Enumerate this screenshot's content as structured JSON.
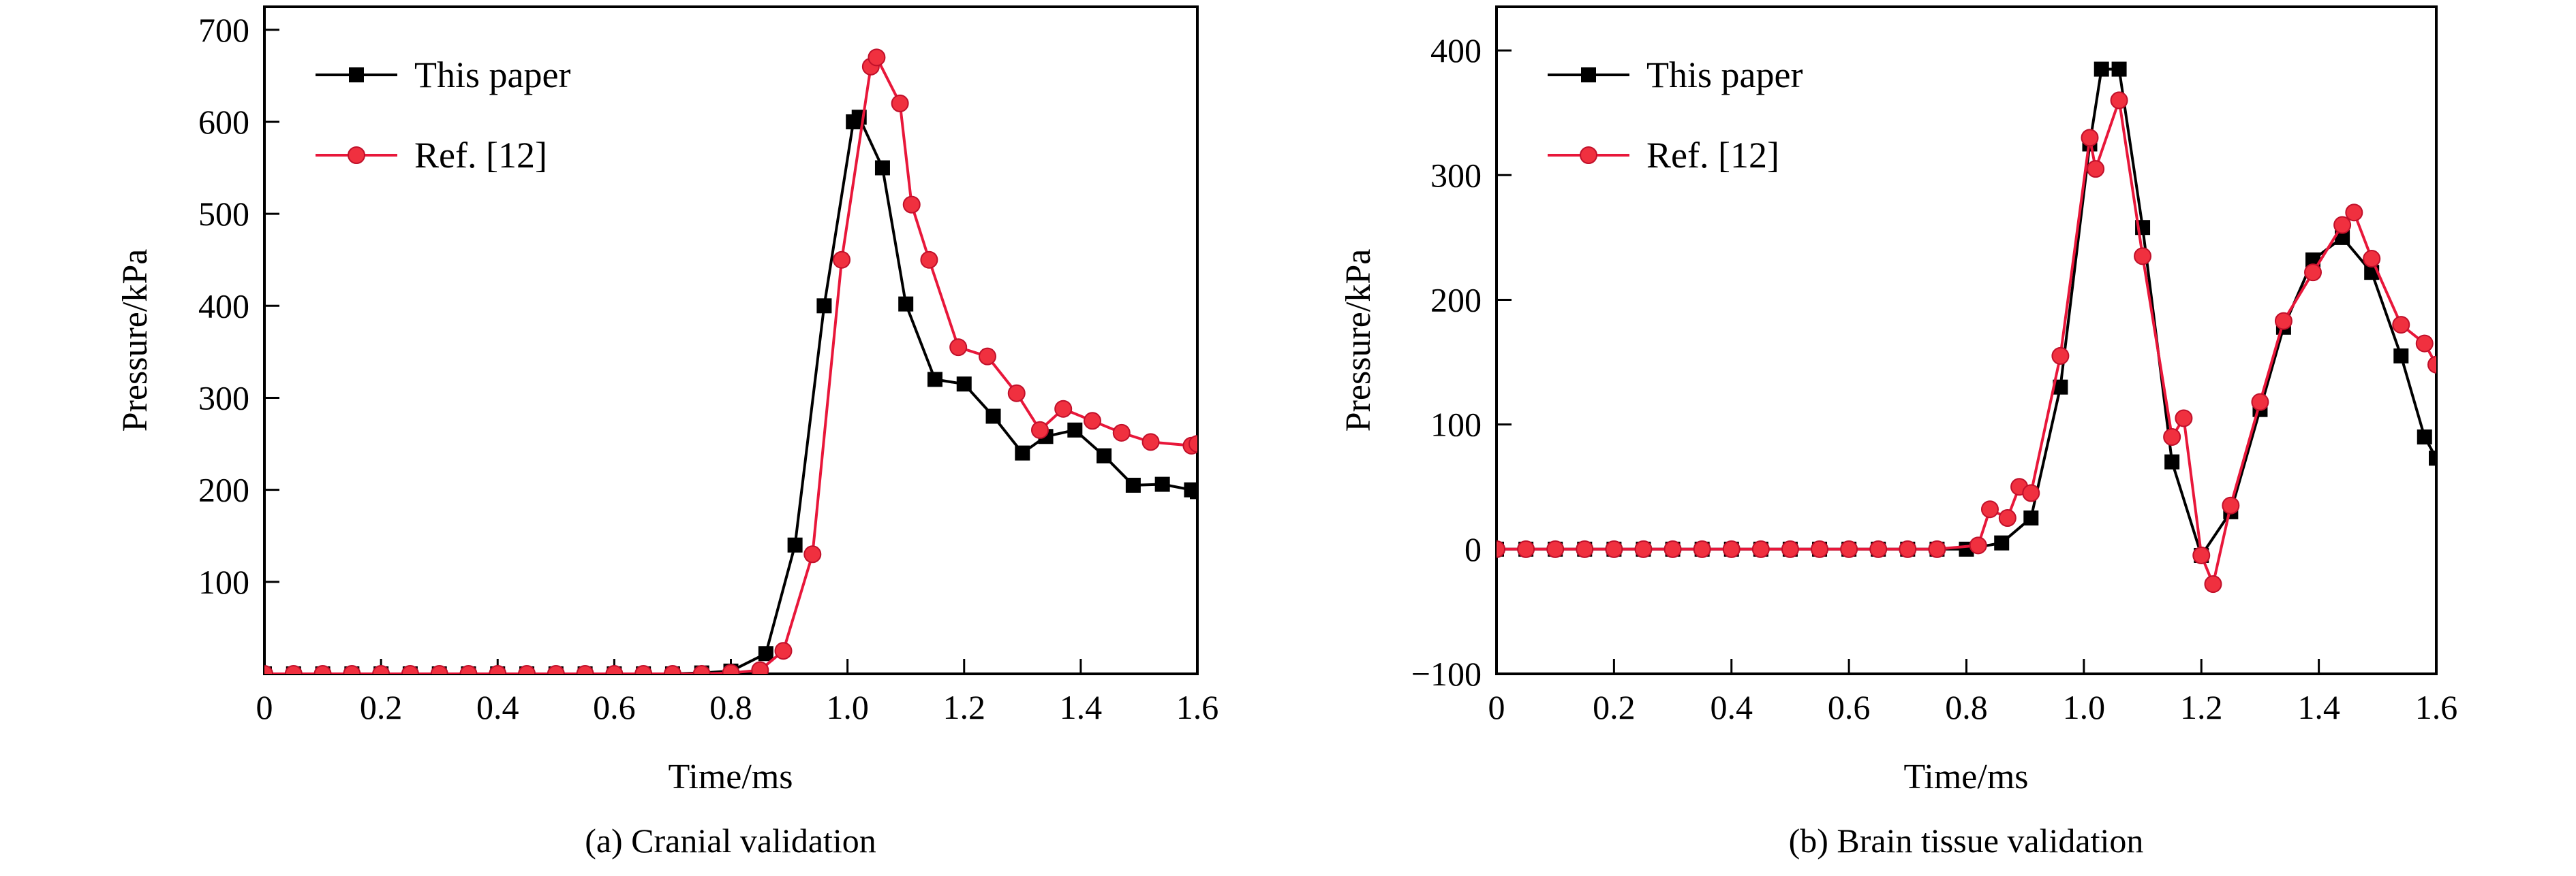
{
  "colors": {
    "this_paper": "#000000",
    "ref": "#e8173a",
    "ref_marker": "#f0303f"
  },
  "chart_data": [
    {
      "type": "line",
      "caption": "(a) Cranial validation",
      "xlabel": "Time/ms",
      "ylabel": "Pressure/kPa",
      "xlim": [
        0,
        1.6
      ],
      "ylim": [
        0,
        725
      ],
      "xticks": [
        0,
        0.2,
        0.4,
        0.6,
        0.8,
        1.0,
        1.2,
        1.4,
        1.6
      ],
      "xtick_labels": [
        "0",
        "0.2",
        "0.4",
        "0.6",
        "0.8",
        "1.0",
        "1.2",
        "1.4",
        "1.6"
      ],
      "yticks": [
        100,
        200,
        300,
        400,
        500,
        600,
        700
      ],
      "ytick_labels": [
        "100",
        "200",
        "300",
        "400",
        "500",
        "600",
        "700"
      ],
      "grid": false,
      "legend": "top-left",
      "series": [
        {
          "name": "This paper",
          "marker": "square",
          "x": [
            0,
            0.05,
            0.1,
            0.15,
            0.2,
            0.25,
            0.3,
            0.35,
            0.4,
            0.45,
            0.5,
            0.55,
            0.6,
            0.65,
            0.7,
            0.75,
            0.8,
            0.86,
            0.91,
            0.96,
            1.01,
            1.02,
            1.06,
            1.1,
            1.15,
            1.2,
            1.25,
            1.3,
            1.34,
            1.39,
            1.44,
            1.49,
            1.54,
            1.59,
            1.6
          ],
          "y": [
            0,
            0,
            0,
            0,
            0,
            0,
            0,
            0,
            0,
            0,
            0,
            0,
            0,
            0,
            0,
            1,
            3,
            22,
            140,
            400,
            600,
            605,
            550,
            402,
            320,
            315,
            280,
            240,
            258,
            265,
            237,
            205,
            206,
            200,
            198
          ]
        },
        {
          "name": "Ref. [12]",
          "marker": "circle",
          "x": [
            0,
            0.05,
            0.1,
            0.15,
            0.2,
            0.25,
            0.3,
            0.35,
            0.4,
            0.45,
            0.5,
            0.55,
            0.6,
            0.65,
            0.7,
            0.75,
            0.8,
            0.85,
            0.89,
            0.94,
            0.99,
            1.04,
            1.05,
            1.09,
            1.11,
            1.14,
            1.19,
            1.24,
            1.29,
            1.33,
            1.37,
            1.42,
            1.47,
            1.52,
            1.59,
            1.6
          ],
          "y": [
            0,
            0,
            0,
            0,
            0,
            0,
            0,
            0,
            0,
            0,
            0,
            0,
            0,
            0,
            0,
            0,
            1,
            4,
            25,
            130,
            450,
            660,
            670,
            620,
            510,
            450,
            355,
            345,
            305,
            265,
            288,
            275,
            262,
            252,
            248,
            250
          ]
        }
      ]
    },
    {
      "type": "line",
      "caption": "(b) Brain tissue validation",
      "xlabel": "Time/ms",
      "ylabel": "Pressure/kPa",
      "xlim": [
        0,
        1.6
      ],
      "ylim": [
        -100,
        435
      ],
      "xticks": [
        0,
        0.2,
        0.4,
        0.6,
        0.8,
        1.0,
        1.2,
        1.4,
        1.6
      ],
      "xtick_labels": [
        "0",
        "0.2",
        "0.4",
        "0.6",
        "0.8",
        "1.0",
        "1.2",
        "1.4",
        "1.6"
      ],
      "yticks": [
        -100,
        0,
        100,
        200,
        300,
        400
      ],
      "ytick_labels": [
        "−100",
        "0",
        "100",
        "200",
        "300",
        "400"
      ],
      "grid": false,
      "legend": "top-left",
      "series": [
        {
          "name": "This paper",
          "marker": "square",
          "x": [
            0,
            0.05,
            0.1,
            0.15,
            0.2,
            0.25,
            0.3,
            0.35,
            0.4,
            0.45,
            0.5,
            0.55,
            0.6,
            0.65,
            0.7,
            0.75,
            0.8,
            0.86,
            0.91,
            0.96,
            1.01,
            1.03,
            1.06,
            1.1,
            1.15,
            1.2,
            1.25,
            1.3,
            1.34,
            1.39,
            1.44,
            1.49,
            1.54,
            1.58,
            1.6
          ],
          "y": [
            0,
            0,
            0,
            0,
            0,
            0,
            0,
            0,
            0,
            0,
            0,
            0,
            0,
            0,
            0,
            0,
            0,
            5,
            25,
            130,
            325,
            385,
            385,
            258,
            70,
            -5,
            30,
            112,
            178,
            232,
            250,
            222,
            155,
            90,
            73
          ]
        },
        {
          "name": "Ref. [12]",
          "marker": "circle",
          "x": [
            0,
            0.05,
            0.1,
            0.15,
            0.2,
            0.25,
            0.3,
            0.35,
            0.4,
            0.45,
            0.5,
            0.55,
            0.6,
            0.65,
            0.7,
            0.75,
            0.82,
            0.84,
            0.87,
            0.89,
            0.91,
            0.96,
            1.01,
            1.02,
            1.06,
            1.1,
            1.15,
            1.17,
            1.2,
            1.22,
            1.25,
            1.3,
            1.34,
            1.39,
            1.44,
            1.46,
            1.49,
            1.54,
            1.58,
            1.6
          ],
          "y": [
            0,
            0,
            0,
            0,
            0,
            0,
            0,
            0,
            0,
            0,
            0,
            0,
            0,
            0,
            0,
            0,
            3,
            32,
            25,
            50,
            45,
            155,
            330,
            305,
            360,
            235,
            90,
            105,
            -5,
            -28,
            35,
            118,
            183,
            222,
            260,
            270,
            233,
            180,
            165,
            148
          ]
        }
      ]
    }
  ]
}
